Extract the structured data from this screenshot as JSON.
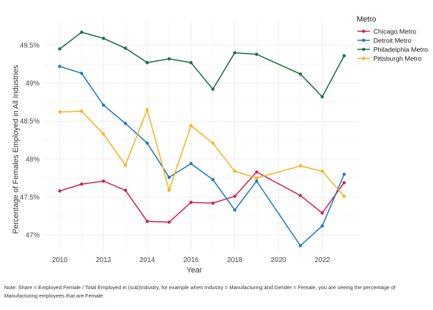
{
  "chart_data": {
    "type": "line",
    "title": "",
    "xlabel": "Year",
    "ylabel": "Percentage of Females Employed in All Industries",
    "xlim": [
      2009.3,
      2023.7
    ],
    "ylim": [
      46.8,
      49.82
    ],
    "x_ticks": [
      2010,
      2012,
      2014,
      2016,
      2018,
      2020,
      2022
    ],
    "x_tick_labels": [
      "2010",
      "2012",
      "2014",
      "2016",
      "2018",
      "2020",
      "2022"
    ],
    "y_ticks": [
      47,
      47.5,
      48,
      48.5,
      49,
      49.5
    ],
    "y_tick_labels": [
      "47%",
      "47.5%",
      "48%",
      "48.5%",
      "49%",
      "49.5%"
    ],
    "grid": true,
    "legend_title": "Metro",
    "legend_position": "top-right",
    "series": [
      {
        "name": "Chicago Metro",
        "color": "#d6204f",
        "points": [
          [
            2010,
            47.58
          ],
          [
            2011,
            47.67
          ],
          [
            2012,
            47.71
          ],
          [
            2013,
            47.59
          ],
          [
            2014,
            47.18
          ],
          [
            2015,
            47.17
          ],
          [
            2016,
            47.43
          ],
          [
            2017,
            47.42
          ],
          [
            2018,
            47.51
          ],
          [
            2019,
            47.83
          ],
          [
            2021,
            47.52
          ],
          [
            2022,
            47.29
          ],
          [
            2023,
            47.69
          ]
        ]
      },
      {
        "name": "Detroit Metro",
        "color": "#1f78c1",
        "points": [
          [
            2010,
            49.22
          ],
          [
            2011,
            49.13
          ],
          [
            2012,
            48.71
          ],
          [
            2013,
            48.47
          ],
          [
            2014,
            48.21
          ],
          [
            2015,
            47.76
          ],
          [
            2016,
            47.94
          ],
          [
            2017,
            47.73
          ],
          [
            2018,
            47.33
          ],
          [
            2019,
            47.71
          ],
          [
            2021,
            46.86
          ],
          [
            2022,
            47.12
          ],
          [
            2023,
            47.8
          ]
        ]
      },
      {
        "name": "Philadelphia Metro",
        "color": "#1a7040",
        "points": [
          [
            2010,
            49.45
          ],
          [
            2011,
            49.67
          ],
          [
            2012,
            49.59
          ],
          [
            2013,
            49.46
          ],
          [
            2014,
            49.27
          ],
          [
            2015,
            49.32
          ],
          [
            2016,
            49.27
          ],
          [
            2017,
            48.92
          ],
          [
            2018,
            49.4
          ],
          [
            2019,
            49.38
          ],
          [
            2021,
            49.12
          ],
          [
            2022,
            48.82
          ],
          [
            2023,
            49.36
          ]
        ]
      },
      {
        "name": "Pittsburgh Metro",
        "color": "#f5b31c",
        "points": [
          [
            2010,
            48.62
          ],
          [
            2011,
            48.63
          ],
          [
            2012,
            48.33
          ],
          [
            2013,
            47.92
          ],
          [
            2014,
            48.65
          ],
          [
            2015,
            47.59
          ],
          [
            2016,
            48.44
          ],
          [
            2017,
            48.21
          ],
          [
            2018,
            47.84
          ],
          [
            2019,
            47.75
          ],
          [
            2021,
            47.91
          ],
          [
            2022,
            47.84
          ],
          [
            2023,
            47.51
          ]
        ]
      }
    ]
  },
  "note": "Note: Share = Employed Female / Total Employed in (sub)Industry, for example when Industry = Manufacturing and Gender = Female, you are seeing the percentage of Manufacturing employees that are Female."
}
